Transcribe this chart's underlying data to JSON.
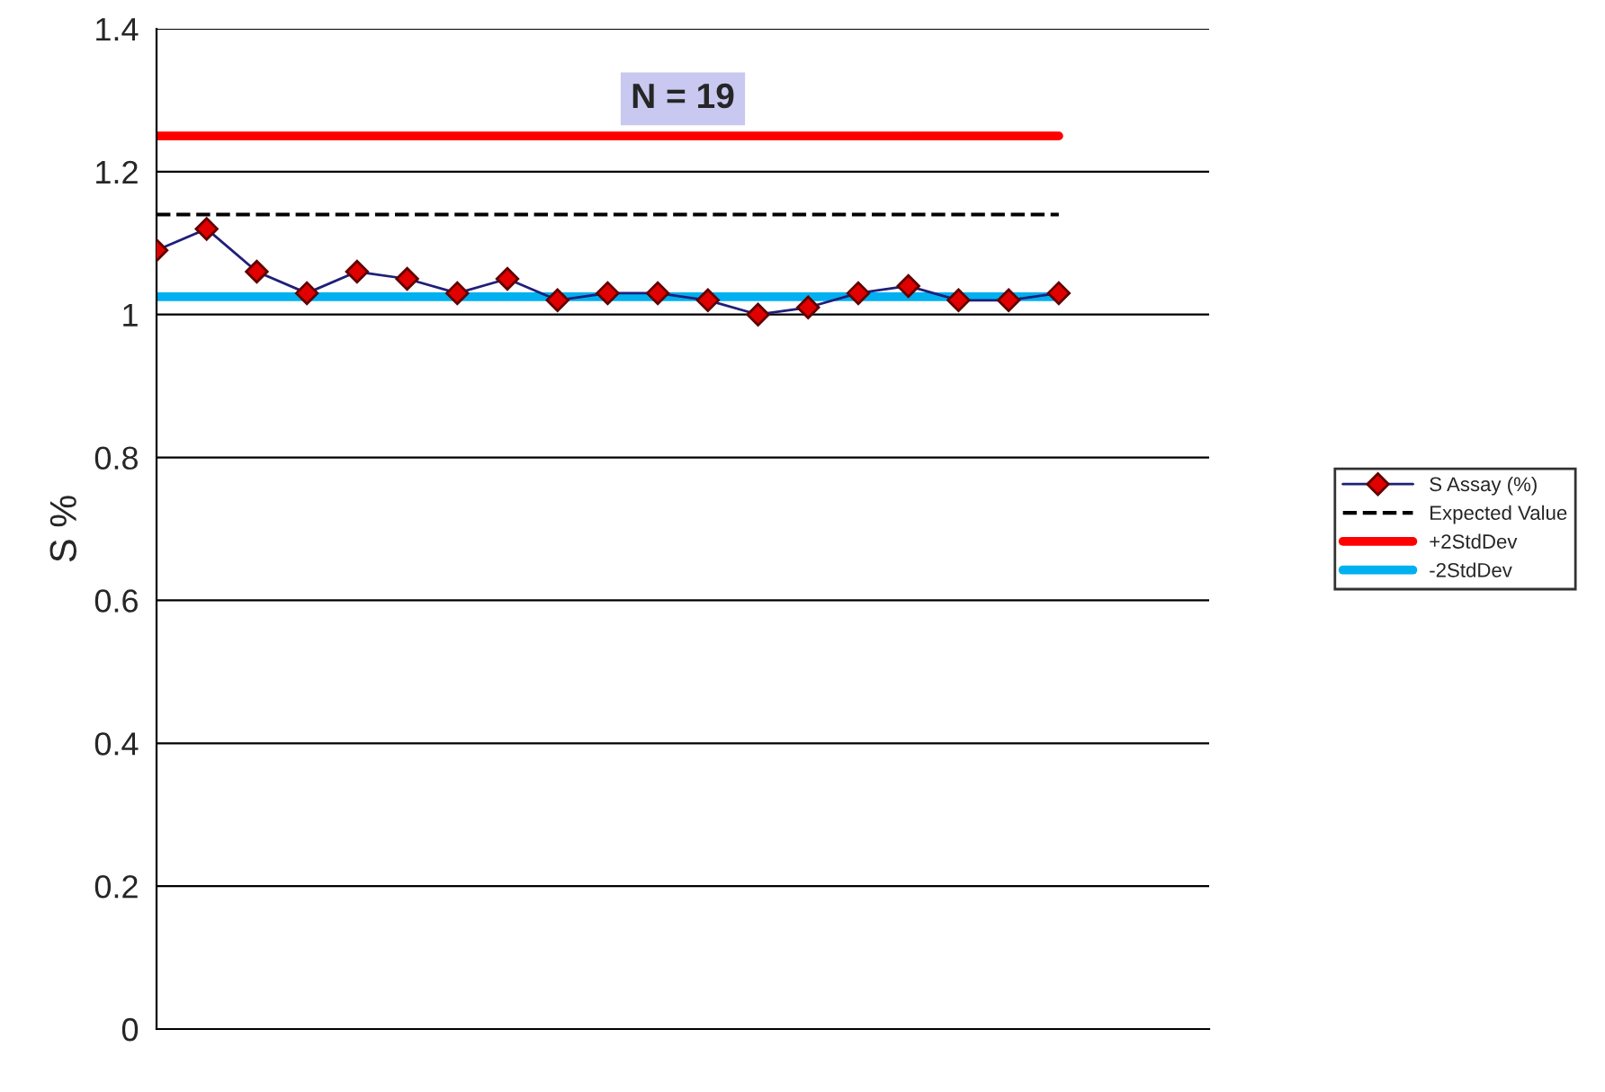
{
  "chart_data": {
    "type": "line",
    "ylabel": "S %",
    "categories": [
      null,
      null,
      null,
      null,
      null,
      null,
      null,
      null,
      null,
      null,
      null,
      null,
      null,
      null,
      null,
      null,
      null,
      null,
      null
    ],
    "series": [
      {
        "name": "S Assay (%)",
        "color": "#1f1f7a",
        "marker": "diamond",
        "line_style": "solid",
        "values": [
          1.09,
          1.12,
          1.06,
          1.03,
          1.06,
          1.05,
          1.03,
          1.05,
          1.02,
          1.03,
          1.03,
          1.02,
          1.0,
          1.01,
          1.03,
          1.04,
          1.02,
          1.02,
          1.03
        ]
      },
      {
        "name": "Expected Value",
        "color": "#000000",
        "marker": "none",
        "line_style": "dashed",
        "values": [
          1.14,
          1.14,
          1.14,
          1.14,
          1.14,
          1.14,
          1.14,
          1.14,
          1.14,
          1.14,
          1.14,
          1.14,
          1.14,
          1.14,
          1.14,
          1.14,
          1.14,
          1.14,
          1.14
        ]
      },
      {
        "name": "+2StdDev",
        "color": "#ff0000",
        "marker": "none",
        "line_style": "solid",
        "values": [
          1.25,
          1.25,
          1.25,
          1.25,
          1.25,
          1.25,
          1.25,
          1.25,
          1.25,
          1.25,
          1.25,
          1.25,
          1.25,
          1.25,
          1.25,
          1.25,
          1.25,
          1.25,
          1.25
        ]
      },
      {
        "name": "-2StdDev",
        "color": "#00b0f0",
        "marker": "none",
        "line_style": "solid",
        "values": [
          1.025,
          1.025,
          1.025,
          1.025,
          1.025,
          1.025,
          1.025,
          1.025,
          1.025,
          1.025,
          1.025,
          1.025,
          1.025,
          1.025,
          1.025,
          1.025,
          1.025,
          1.025,
          1.025
        ]
      }
    ],
    "ylim": [
      0,
      1.4
    ],
    "yticks": [
      0,
      0.2,
      0.4,
      0.6,
      0.8,
      1,
      1.2,
      1.4
    ],
    "grid": "y",
    "legend": "right",
    "annotations": [
      "N = 19"
    ]
  }
}
